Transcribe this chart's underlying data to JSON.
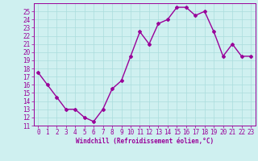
{
  "x": [
    0,
    1,
    2,
    3,
    4,
    5,
    6,
    7,
    8,
    9,
    10,
    11,
    12,
    13,
    14,
    15,
    16,
    17,
    18,
    19,
    20,
    21,
    22,
    23
  ],
  "y": [
    17.5,
    16.0,
    14.5,
    13.0,
    13.0,
    12.0,
    11.5,
    13.0,
    15.5,
    16.5,
    19.5,
    22.5,
    21.0,
    23.5,
    24.0,
    25.5,
    25.5,
    24.5,
    25.0,
    22.5,
    19.5,
    21.0,
    19.5,
    19.5
  ],
  "line_color": "#990099",
  "marker": "D",
  "marker_size": 2,
  "line_width": 1.0,
  "bg_color": "#cff0f0",
  "grid_color": "#aadddd",
  "xlabel": "Windchill (Refroidissement éolien,°C)",
  "xlabel_color": "#990099",
  "xlabel_fontsize": 5.5,
  "tick_color": "#990099",
  "tick_fontsize": 5.5,
  "ylim": [
    11,
    26
  ],
  "yticks": [
    11,
    12,
    13,
    14,
    15,
    16,
    17,
    18,
    19,
    20,
    21,
    22,
    23,
    24,
    25
  ],
  "xticks": [
    0,
    1,
    2,
    3,
    4,
    5,
    6,
    7,
    8,
    9,
    10,
    11,
    12,
    13,
    14,
    15,
    16,
    17,
    18,
    19,
    20,
    21,
    22,
    23
  ]
}
